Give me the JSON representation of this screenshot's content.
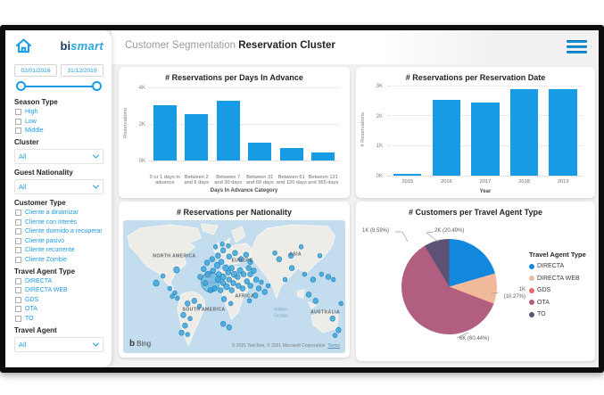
{
  "header": {
    "title_prefix": "Customer Segmentation",
    "title": "Reservation Cluster"
  },
  "logo": {
    "part1": "bi",
    "part2": "smart"
  },
  "sidebar": {
    "date_from": "02/01/2016",
    "date_to": "31/12/2019",
    "season_title": "Season Type",
    "season_options": [
      "High",
      "Low",
      "Middle"
    ],
    "cluster_title": "Cluster",
    "cluster_value": "All",
    "nationality_title": "Guest Nationality",
    "nationality_value": "All",
    "customer_title": "Customer Type",
    "customer_options": [
      "Cliente a dinamizar",
      "Cliente con interés",
      "Cliente dormido a recuperar",
      "Cliente pasivo",
      "Cliente recurrente",
      "Cliente Zombie"
    ],
    "agent_type_title": "Travel Agent Type",
    "agent_type_options": [
      "DIRECTA",
      "DIRECTA WEB",
      "GDS",
      "OTA",
      "TO"
    ],
    "agent_title": "Travel Agent",
    "agent_value": "All"
  },
  "colors": {
    "accent_blue": "#1B9CE8",
    "bar_blue": "#189BE5",
    "sidebar_text_blue": "#1E9BE0",
    "app_background": "#F1F1F1"
  },
  "chart_data": [
    {
      "type": "bar",
      "title": "# Reservations per Days In Advance",
      "xlabel": "Days In Advance Category",
      "ylabel": "Reservations",
      "categories": [
        "0 or 1 days in advance",
        "Between 2 and 6 days",
        "Between 7 and 30 days",
        "Between 31 and 60 days",
        "Between 61 and 120 days",
        "Between 121 and 365 days"
      ],
      "values": [
        3050,
        2550,
        3300,
        1000,
        680,
        440
      ],
      "ylim": [
        0,
        4000
      ],
      "yticks": [
        "0K",
        "2K",
        "4K"
      ],
      "bar_color": "#189BE5",
      "grid": "dotted"
    },
    {
      "type": "bar",
      "title": "# Reservations per Reservation Date",
      "xlabel": "Year",
      "ylabel": "# Reservations",
      "categories": [
        "2015",
        "2016",
        "2017",
        "2018",
        "2019"
      ],
      "values": [
        60,
        2540,
        2450,
        2920,
        2920
      ],
      "ylim": [
        0,
        3000
      ],
      "yticks": [
        "0K",
        "1K",
        "2K",
        "3K"
      ],
      "bar_color": "#189BE5",
      "grid": "dotted"
    },
    {
      "type": "map",
      "title": "# Reservations per Nationality",
      "bing_logo": "Bing",
      "attribution": "© 2021 TomTom, © 2021 Microsoft Corporation",
      "terms": "Terms",
      "labels": [
        {
          "text": "NORTH AMERICA",
          "x": 35,
          "y": 42,
          "kind": "land"
        },
        {
          "text": "EUROPE",
          "x": 128,
          "y": 47,
          "kind": "land"
        },
        {
          "text": "ASIA",
          "x": 196,
          "y": 40,
          "kind": "land"
        },
        {
          "text": "AFRICA",
          "x": 132,
          "y": 87,
          "kind": "land"
        },
        {
          "text": "SOUTH AMERICA",
          "x": 70,
          "y": 102,
          "kind": "land"
        },
        {
          "text": "AUSTRALIA",
          "x": 221,
          "y": 105,
          "kind": "land"
        },
        {
          "text": "Atlantic",
          "x": 90,
          "y": 65,
          "kind": "ocean"
        },
        {
          "text": "Ocean",
          "x": 92,
          "y": 72,
          "kind": "ocean"
        },
        {
          "text": "Indian",
          "x": 178,
          "y": 102,
          "kind": "ocean"
        },
        {
          "text": "Ocean",
          "x": 178,
          "y": 109,
          "kind": "ocean"
        }
      ],
      "bubbles": [
        [
          103,
          70,
          11
        ],
        [
          95,
          55,
          3
        ],
        [
          100,
          61,
          3.5
        ],
        [
          106,
          57,
          3
        ],
        [
          111,
          51,
          3.5
        ],
        [
          116,
          47,
          3
        ],
        [
          121,
          54,
          3.5
        ],
        [
          113,
          61,
          3
        ],
        [
          118,
          64,
          3.5
        ],
        [
          124,
          59,
          3
        ],
        [
          128,
          54,
          3
        ],
        [
          131,
          61,
          3.5
        ],
        [
          125,
          67,
          3
        ],
        [
          118,
          71,
          3
        ],
        [
          112,
          67,
          3.5
        ],
        [
          108,
          77,
          3
        ],
        [
          115,
          79,
          3
        ],
        [
          122,
          75,
          3.5
        ],
        [
          130,
          71,
          3
        ],
        [
          135,
          64,
          3
        ],
        [
          138,
          57,
          3.5
        ],
        [
          142,
          61,
          3
        ],
        [
          136,
          74,
          3
        ],
        [
          128,
          79,
          3
        ],
        [
          141,
          77,
          3
        ],
        [
          146,
          69,
          3
        ],
        [
          150,
          61,
          3
        ],
        [
          154,
          57,
          3
        ],
        [
          148,
          54,
          3
        ],
        [
          91,
          64,
          3
        ],
        [
          97,
          71,
          3
        ],
        [
          103,
          79,
          3
        ],
        [
          150,
          74,
          3
        ],
        [
          157,
          67,
          3
        ],
        [
          112,
          40,
          3
        ],
        [
          118,
          34,
          3
        ],
        [
          125,
          41,
          3
        ],
        [
          132,
          37,
          3
        ],
        [
          139,
          44,
          3
        ],
        [
          145,
          39,
          3
        ],
        [
          150,
          47,
          3
        ],
        [
          105,
          44,
          3
        ],
        [
          99,
          48,
          3
        ],
        [
          109,
          30,
          2.5
        ],
        [
          117,
          27,
          2.5
        ],
        [
          124,
          29,
          2.5
        ],
        [
          63,
          56,
          3.5
        ],
        [
          39,
          71,
          3.5
        ],
        [
          55,
          77,
          2.5
        ],
        [
          61,
          82,
          2.5
        ],
        [
          47,
          63,
          2.5
        ],
        [
          58,
          86,
          2.5
        ],
        [
          64,
          88,
          2.5
        ],
        [
          76,
          94,
          3
        ],
        [
          84,
          91,
          3
        ],
        [
          90,
          97,
          2.5
        ],
        [
          71,
          107,
          3
        ],
        [
          79,
          111,
          2.5
        ],
        [
          73,
          119,
          3
        ],
        [
          69,
          127,
          3
        ],
        [
          76,
          129,
          2.5
        ],
        [
          119,
          89,
          3
        ],
        [
          127,
          94,
          2.5
        ],
        [
          118,
          117,
          3
        ],
        [
          125,
          121,
          3
        ],
        [
          149,
          91,
          2.5
        ],
        [
          156,
          85,
          3
        ],
        [
          160,
          77,
          3
        ],
        [
          167,
          81,
          3
        ],
        [
          171,
          74,
          2.5
        ],
        [
          163,
          70,
          2.5
        ],
        [
          184,
          44,
          3
        ],
        [
          199,
          54,
          3
        ],
        [
          214,
          61,
          2.5
        ],
        [
          224,
          67,
          3
        ],
        [
          191,
          67,
          2.5
        ],
        [
          234,
          61,
          2.5
        ],
        [
          242,
          64,
          3
        ],
        [
          248,
          67,
          2.5
        ],
        [
          219,
          84,
          3
        ],
        [
          227,
          91,
          3
        ],
        [
          198,
          40,
          3
        ],
        [
          179,
          37,
          2.5
        ],
        [
          210,
          30,
          2.5
        ],
        [
          232,
          40,
          2.5
        ],
        [
          247,
          111,
          3
        ],
        [
          254,
          124,
          3
        ],
        [
          257,
          94,
          2.5
        ],
        [
          250,
          130,
          2.5
        ]
      ]
    },
    {
      "type": "pie",
      "title": "# Customers per Travel Agent Type",
      "legend_title": "Travel Agent Type",
      "slices": [
        {
          "name": "DIRECTA",
          "value": "2K",
          "pct": 20.49,
          "color": "#1187DD"
        },
        {
          "name": "DIRECTA WEB",
          "value": "1K",
          "pct": 10.27,
          "color": "#F2BA9C"
        },
        {
          "name": "GDS",
          "value": "",
          "pct": 0.21,
          "color": "#E66A6A"
        },
        {
          "name": "OTA",
          "value": "6K",
          "pct": 60.44,
          "color": "#B25E80"
        },
        {
          "name": "TO",
          "value": "1K",
          "pct": 8.59,
          "color": "#5D5176"
        }
      ],
      "callouts": {
        "to": "1K (8.59%)",
        "directa": "2K (20.49%)",
        "directa_web_value": "1K",
        "directa_web_pct": "(10.27%)",
        "ota": "6K (60.44%)"
      }
    }
  ]
}
